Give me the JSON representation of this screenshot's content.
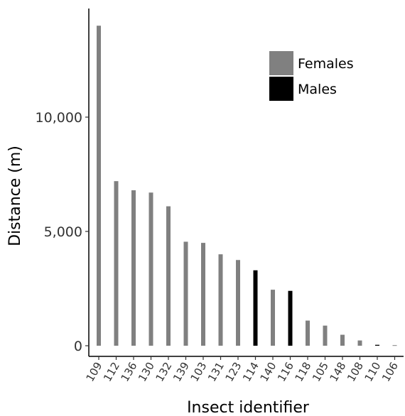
{
  "chart_data": {
    "type": "bar",
    "xlabel": "Insect identifier",
    "ylabel": "Distance (m)",
    "ylim": [
      0,
      14500
    ],
    "yticks": [
      {
        "value": 0,
        "label": "0"
      },
      {
        "value": 5000,
        "label": "5,000"
      },
      {
        "value": 10000,
        "label": "10,000"
      }
    ],
    "grid": false,
    "legend_position": "top-right",
    "legend": [
      {
        "label": "Females",
        "color": "#808080"
      },
      {
        "label": "Males",
        "color": "#000000"
      }
    ],
    "categories": [
      "109",
      "112",
      "136",
      "130",
      "132",
      "139",
      "103",
      "131",
      "123",
      "114",
      "140",
      "116",
      "118",
      "105",
      "148",
      "108",
      "110",
      "106"
    ],
    "values": [
      14000,
      7200,
      6800,
      6700,
      6100,
      4550,
      4500,
      4000,
      3750,
      3300,
      2450,
      2400,
      1100,
      880,
      480,
      230,
      40,
      25
    ],
    "sex": [
      "F",
      "F",
      "F",
      "F",
      "F",
      "F",
      "F",
      "F",
      "F",
      "M",
      "F",
      "M",
      "F",
      "F",
      "F",
      "F",
      "M",
      "F"
    ]
  }
}
